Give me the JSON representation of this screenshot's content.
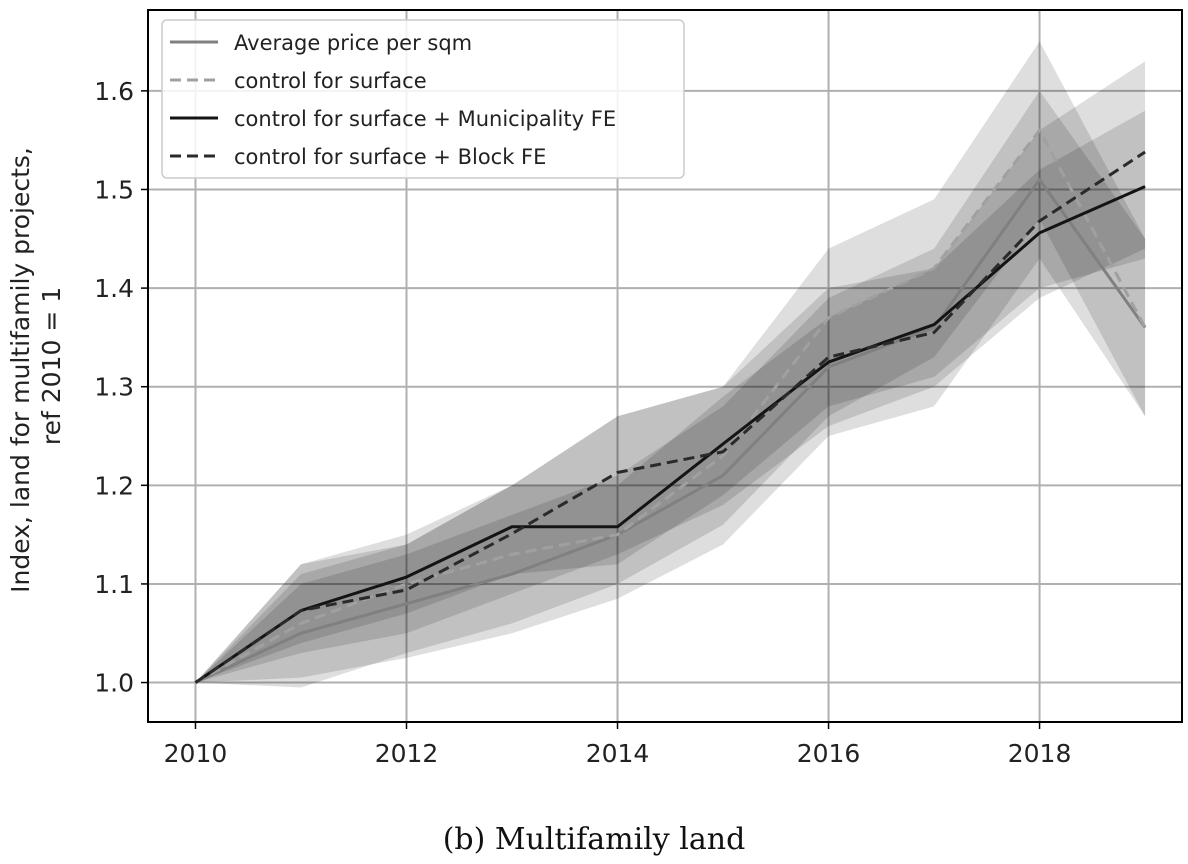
{
  "caption": "(b) Multifamily land",
  "chart_data": {
    "type": "line",
    "ylabel_lines": [
      "Index, land for multifamily projects,",
      "ref 2010 = 1"
    ],
    "xlim": [
      2009.55,
      2019.35
    ],
    "ylim": [
      0.96,
      1.682
    ],
    "xticks": [
      2010,
      2012,
      2014,
      2016,
      2018
    ],
    "yticks": [
      1.0,
      1.1,
      1.2,
      1.3,
      1.4,
      1.5,
      1.6
    ],
    "grid": true,
    "legend_position": "top-left",
    "x": [
      2010,
      2011,
      2012,
      2013,
      2014,
      2015,
      2016,
      2017,
      2018,
      2019
    ],
    "series": [
      {
        "name": "Average price per sqm",
        "color": "#808080",
        "dash": "solid",
        "values": [
          1.0,
          1.05,
          1.08,
          1.11,
          1.15,
          1.21,
          1.32,
          1.36,
          1.51,
          1.36
        ],
        "band_low": [
          1.0,
          1.005,
          1.025,
          1.05,
          1.085,
          1.14,
          1.25,
          1.28,
          1.43,
          1.27
        ],
        "band_high": [
          1.0,
          1.1,
          1.13,
          1.17,
          1.21,
          1.28,
          1.39,
          1.44,
          1.6,
          1.45
        ]
      },
      {
        "name": "control for surface",
        "color": "#a0a0a0",
        "dash": "dashed",
        "values": [
          1.0,
          1.06,
          1.1,
          1.13,
          1.15,
          1.23,
          1.37,
          1.42,
          1.56,
          1.36
        ],
        "band_low": [
          1.0,
          0.995,
          1.03,
          1.06,
          1.1,
          1.16,
          1.27,
          1.33,
          1.47,
          1.27
        ],
        "band_high": [
          1.0,
          1.12,
          1.15,
          1.2,
          1.27,
          1.3,
          1.44,
          1.49,
          1.65,
          1.45
        ]
      },
      {
        "name": "control for surface + Municipality FE",
        "color": "#141414",
        "dash": "solid",
        "values": [
          1.0,
          1.073,
          1.107,
          1.158,
          1.158,
          1.242,
          1.325,
          1.363,
          1.456,
          1.503
        ],
        "band_low": [
          1.0,
          1.04,
          1.07,
          1.11,
          1.12,
          1.19,
          1.28,
          1.31,
          1.4,
          1.43
        ],
        "band_high": [
          1.0,
          1.11,
          1.14,
          1.2,
          1.2,
          1.29,
          1.37,
          1.42,
          1.52,
          1.58
        ]
      },
      {
        "name": "control for surface + Block FE",
        "color": "#2a2a2a",
        "dash": "dashed",
        "values": [
          1.0,
          1.073,
          1.094,
          1.151,
          1.213,
          1.234,
          1.33,
          1.355,
          1.468,
          1.538
        ],
        "band_low": [
          1.0,
          1.03,
          1.05,
          1.09,
          1.13,
          1.18,
          1.26,
          1.3,
          1.39,
          1.44
        ],
        "band_high": [
          1.0,
          1.12,
          1.14,
          1.2,
          1.27,
          1.3,
          1.4,
          1.42,
          1.56,
          1.63
        ]
      }
    ]
  }
}
